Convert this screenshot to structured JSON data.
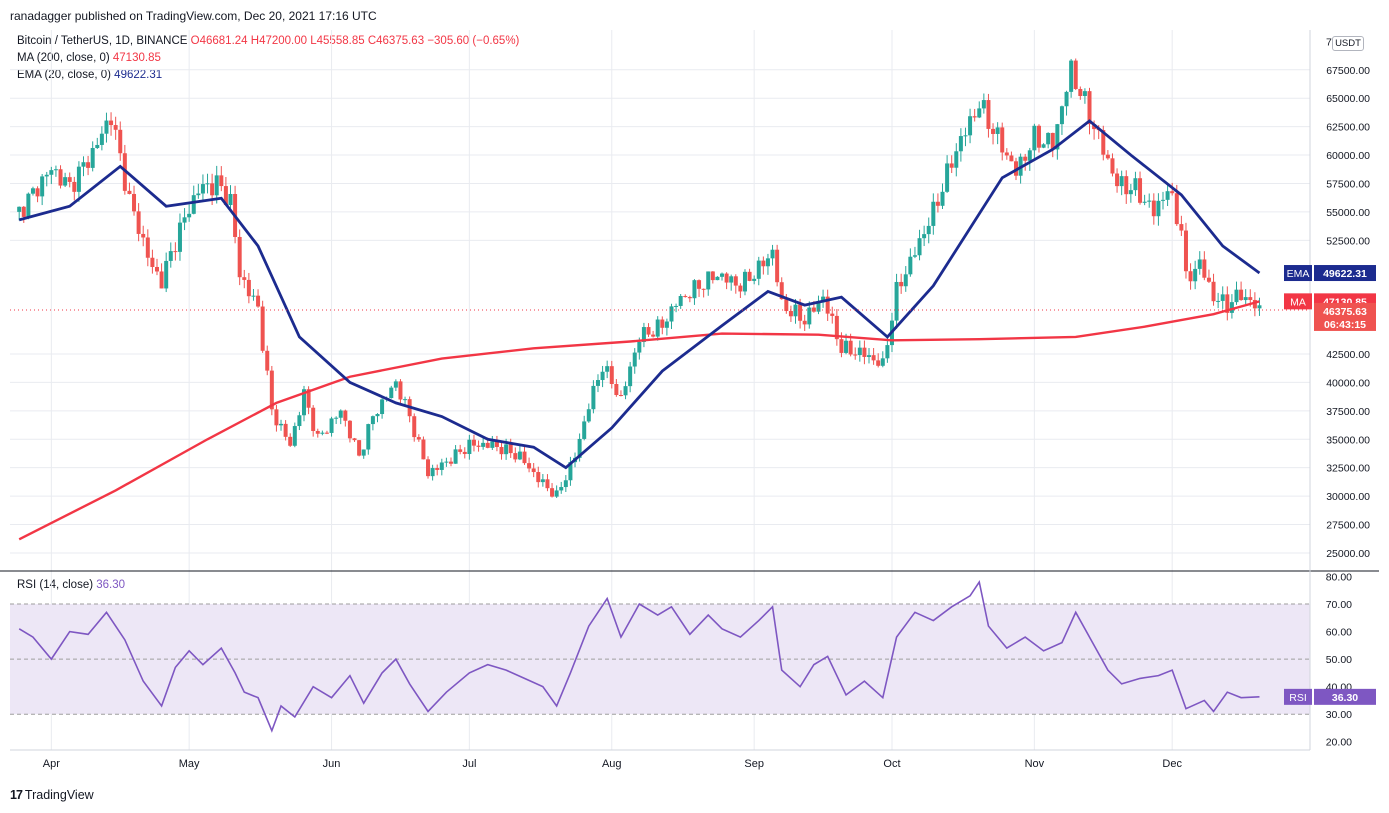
{
  "header": {
    "publisher": "ranadagger published on TradingView.com, Dec 20, 2021 17:16 UTC",
    "currency": "USDT"
  },
  "legend": {
    "symbol": "Bitcoin / TetherUS, 1D, BINANCE",
    "open": "O46681.24",
    "high": "H47200.00",
    "low": "L45558.85",
    "close": "C46375.63",
    "change": "−305.60 (−0.65%)",
    "ma_label": "MA (200, close, 0)",
    "ma_value": "47130.85",
    "ema_label": "EMA (20, close, 0)",
    "ema_value": "49622.31",
    "rsi_label": "RSI (14, close)",
    "rsi_value": "36.30"
  },
  "badges": {
    "ema_tag": "EMA",
    "ema_value": "49622.31",
    "ma_tag": "MA",
    "ma_value": "47130.85",
    "price_value": "46375.63",
    "countdown": "06:43:15",
    "rsi_tag": "RSI",
    "rsi_value": "36.30"
  },
  "footer": {
    "brand": "TradingView",
    "mark": "17"
  },
  "colors": {
    "up": "#26a69a",
    "down": "#ef5350",
    "ma": "#f23645",
    "ema": "#1c2b8f",
    "rsi": "#7e57c2",
    "rsi_band": "#ede7f6",
    "grid": "#e9ebf0"
  },
  "chart_data": [
    {
      "type": "candlestick",
      "title": "Bitcoin / TetherUS, 1D, BINANCE",
      "x_tick_labels": [
        "Apr",
        "May",
        "Jun",
        "Jul",
        "Aug",
        "Sep",
        "Oct",
        "Nov",
        "Dec"
      ],
      "y_ticks": [
        25000,
        27500,
        30000,
        32500,
        35000,
        37500,
        40000,
        42500,
        52500,
        55000,
        57500,
        60000,
        62500,
        65000,
        67500
      ],
      "y_tick_labels": [
        "25000.00",
        "27500.00",
        "30000.00",
        "32500.00",
        "35000.00",
        "37500.00",
        "40000.00",
        "42500.00",
        "52500.00",
        "55000.00",
        "57500.00",
        "60000.00",
        "62500.00",
        "65000.00",
        "67500.00"
      ],
      "y_top_partial_label": "7",
      "ylim": [
        23500,
        71000
      ],
      "current_close": 46375.63,
      "price_series": [
        [
          "2021-03-25",
          55000
        ],
        [
          "2021-04-01",
          58800
        ],
        [
          "2021-04-05",
          57200
        ],
        [
          "2021-04-10",
          60200
        ],
        [
          "2021-04-14",
          63500
        ],
        [
          "2021-04-18",
          56000
        ],
        [
          "2021-04-23",
          50000
        ],
        [
          "2021-04-25",
          49000
        ],
        [
          "2021-04-29",
          53500
        ],
        [
          "2021-05-03",
          57000
        ],
        [
          "2021-05-07",
          57500
        ],
        [
          "2021-05-10",
          56000
        ],
        [
          "2021-05-12",
          49500
        ],
        [
          "2021-05-16",
          46500
        ],
        [
          "2021-05-19",
          37500
        ],
        [
          "2021-05-21",
          36000
        ],
        [
          "2021-05-23",
          34500
        ],
        [
          "2021-05-26",
          39000
        ],
        [
          "2021-05-29",
          35000
        ],
        [
          "2021-06-03",
          37500
        ],
        [
          "2021-06-07",
          33500
        ],
        [
          "2021-06-10",
          37000
        ],
        [
          "2021-06-15",
          40000
        ],
        [
          "2021-06-18",
          37000
        ],
        [
          "2021-06-22",
          32000
        ],
        [
          "2021-06-26",
          33000
        ],
        [
          "2021-07-01",
          34500
        ],
        [
          "2021-07-06",
          34500
        ],
        [
          "2021-07-12",
          33500
        ],
        [
          "2021-07-16",
          31500
        ],
        [
          "2021-07-20",
          30000
        ],
        [
          "2021-07-24",
          33500
        ],
        [
          "2021-07-27",
          38000
        ],
        [
          "2021-07-30",
          41500
        ],
        [
          "2021-08-03",
          38500
        ],
        [
          "2021-08-07",
          44000
        ],
        [
          "2021-08-12",
          45000
        ],
        [
          "2021-08-15",
          47000
        ],
        [
          "2021-08-20",
          48500
        ],
        [
          "2021-08-24",
          49500
        ],
        [
          "2021-08-29",
          48500
        ],
        [
          "2021-09-02",
          50000
        ],
        [
          "2021-09-05",
          51500
        ],
        [
          "2021-09-07",
          46800
        ],
        [
          "2021-09-12",
          45500
        ],
        [
          "2021-09-16",
          47500
        ],
        [
          "2021-09-20",
          43000
        ],
        [
          "2021-09-25",
          42500
        ],
        [
          "2021-09-29",
          41500
        ],
        [
          "2021-10-02",
          48000
        ],
        [
          "2021-10-06",
          51500
        ],
        [
          "2021-10-10",
          55000
        ],
        [
          "2021-10-15",
          60500
        ],
        [
          "2021-10-20",
          64500
        ],
        [
          "2021-10-24",
          61500
        ],
        [
          "2021-10-28",
          58500
        ],
        [
          "2021-11-01",
          61500
        ],
        [
          "2021-11-05",
          61000
        ],
        [
          "2021-11-09",
          67500
        ],
        [
          "2021-11-12",
          64500
        ],
        [
          "2021-11-16",
          60500
        ],
        [
          "2021-11-19",
          57500
        ],
        [
          "2021-11-23",
          57000
        ],
        [
          "2021-11-27",
          55000
        ],
        [
          "2021-11-30",
          57000
        ],
        [
          "2021-12-03",
          53500
        ],
        [
          "2021-12-04",
          49000
        ],
        [
          "2021-12-07",
          50500
        ],
        [
          "2021-12-10",
          47500
        ],
        [
          "2021-12-13",
          46800
        ],
        [
          "2021-12-16",
          47800
        ],
        [
          "2021-12-20",
          46376
        ]
      ],
      "series": [
        {
          "name": "MA (200, close, 0)",
          "values": [
            [
              "2021-03-25",
              26200
            ],
            [
              "2021-04-15",
              30500
            ],
            [
              "2021-05-05",
              35000
            ],
            [
              "2021-05-20",
              38200
            ],
            [
              "2021-06-05",
              40500
            ],
            [
              "2021-06-25",
              42100
            ],
            [
              "2021-07-15",
              43000
            ],
            [
              "2021-08-05",
              43600
            ],
            [
              "2021-08-25",
              44300
            ],
            [
              "2021-09-15",
              44200
            ],
            [
              "2021-10-01",
              43700
            ],
            [
              "2021-10-20",
              43800
            ],
            [
              "2021-11-10",
              44000
            ],
            [
              "2021-11-25",
              44900
            ],
            [
              "2021-12-10",
              46000
            ],
            [
              "2021-12-20",
              47131
            ]
          ]
        },
        {
          "name": "EMA (20, close, 0)",
          "values": [
            [
              "2021-03-25",
              54300
            ],
            [
              "2021-04-05",
              55500
            ],
            [
              "2021-04-16",
              59000
            ],
            [
              "2021-04-26",
              55500
            ],
            [
              "2021-05-08",
              56200
            ],
            [
              "2021-05-16",
              52000
            ],
            [
              "2021-05-25",
              44000
            ],
            [
              "2021-06-05",
              40000
            ],
            [
              "2021-06-15",
              38200
            ],
            [
              "2021-06-25",
              37000
            ],
            [
              "2021-07-05",
              35000
            ],
            [
              "2021-07-15",
              34300
            ],
            [
              "2021-07-22",
              32500
            ],
            [
              "2021-08-01",
              36000
            ],
            [
              "2021-08-12",
              41000
            ],
            [
              "2021-08-25",
              45000
            ],
            [
              "2021-09-04",
              48000
            ],
            [
              "2021-09-12",
              46800
            ],
            [
              "2021-09-20",
              47500
            ],
            [
              "2021-09-30",
              44000
            ],
            [
              "2021-10-10",
              48500
            ],
            [
              "2021-10-25",
              58000
            ],
            [
              "2021-11-05",
              60500
            ],
            [
              "2021-11-13",
              63000
            ],
            [
              "2021-11-22",
              60000
            ],
            [
              "2021-12-03",
              56500
            ],
            [
              "2021-12-12",
              52000
            ],
            [
              "2021-12-20",
              49622
            ]
          ]
        }
      ]
    },
    {
      "type": "line",
      "title": "RSI (14, close)",
      "y_tick_labels": [
        "20.00",
        "30.00",
        "40.00",
        "50.00",
        "60.00",
        "70.00",
        "80.00"
      ],
      "ylim": [
        17,
        82
      ],
      "bands": [
        30,
        50,
        70
      ],
      "series": [
        {
          "name": "RSI (14, close)",
          "values": [
            [
              "2021-03-25",
              61
            ],
            [
              "2021-03-28",
              58
            ],
            [
              "2021-04-01",
              50
            ],
            [
              "2021-04-05",
              60
            ],
            [
              "2021-04-09",
              59
            ],
            [
              "2021-04-13",
              67
            ],
            [
              "2021-04-17",
              57
            ],
            [
              "2021-04-21",
              42
            ],
            [
              "2021-04-25",
              33
            ],
            [
              "2021-04-28",
              47
            ],
            [
              "2021-05-01",
              53
            ],
            [
              "2021-05-04",
              48
            ],
            [
              "2021-05-08",
              54
            ],
            [
              "2021-05-11",
              45
            ],
            [
              "2021-05-13",
              38
            ],
            [
              "2021-05-16",
              36
            ],
            [
              "2021-05-19",
              24
            ],
            [
              "2021-05-21",
              33
            ],
            [
              "2021-05-24",
              29
            ],
            [
              "2021-05-28",
              40
            ],
            [
              "2021-06-01",
              36
            ],
            [
              "2021-06-05",
              44
            ],
            [
              "2021-06-08",
              34
            ],
            [
              "2021-06-12",
              45
            ],
            [
              "2021-06-15",
              50
            ],
            [
              "2021-06-18",
              41
            ],
            [
              "2021-06-22",
              31
            ],
            [
              "2021-06-26",
              38
            ],
            [
              "2021-07-01",
              45
            ],
            [
              "2021-07-05",
              48
            ],
            [
              "2021-07-09",
              46
            ],
            [
              "2021-07-13",
              43
            ],
            [
              "2021-07-17",
              40
            ],
            [
              "2021-07-20",
              33
            ],
            [
              "2021-07-23",
              45
            ],
            [
              "2021-07-27",
              62
            ],
            [
              "2021-07-31",
              72
            ],
            [
              "2021-08-03",
              58
            ],
            [
              "2021-08-07",
              70
            ],
            [
              "2021-08-11",
              66
            ],
            [
              "2021-08-14",
              69
            ],
            [
              "2021-08-18",
              59
            ],
            [
              "2021-08-22",
              66
            ],
            [
              "2021-08-25",
              61
            ],
            [
              "2021-08-29",
              58
            ],
            [
              "2021-09-02",
              64
            ],
            [
              "2021-09-05",
              69
            ],
            [
              "2021-09-07",
              46
            ],
            [
              "2021-09-11",
              40
            ],
            [
              "2021-09-14",
              48
            ],
            [
              "2021-09-17",
              51
            ],
            [
              "2021-09-21",
              37
            ],
            [
              "2021-09-25",
              42
            ],
            [
              "2021-09-29",
              36
            ],
            [
              "2021-10-02",
              58
            ],
            [
              "2021-10-06",
              67
            ],
            [
              "2021-10-10",
              64
            ],
            [
              "2021-10-14",
              69
            ],
            [
              "2021-10-18",
              73
            ],
            [
              "2021-10-20",
              78
            ],
            [
              "2021-10-22",
              62
            ],
            [
              "2021-10-26",
              54
            ],
            [
              "2021-10-30",
              58
            ],
            [
              "2021-11-03",
              53
            ],
            [
              "2021-11-07",
              56
            ],
            [
              "2021-11-10",
              67
            ],
            [
              "2021-11-13",
              58
            ],
            [
              "2021-11-17",
              46
            ],
            [
              "2021-11-20",
              41
            ],
            [
              "2021-11-24",
              43
            ],
            [
              "2021-11-28",
              44
            ],
            [
              "2021-12-01",
              46
            ],
            [
              "2021-12-04",
              32
            ],
            [
              "2021-12-08",
              35
            ],
            [
              "2021-12-10",
              31
            ],
            [
              "2021-12-13",
              38
            ],
            [
              "2021-12-16",
              36
            ],
            [
              "2021-12-20",
              36.3
            ]
          ]
        }
      ]
    }
  ]
}
